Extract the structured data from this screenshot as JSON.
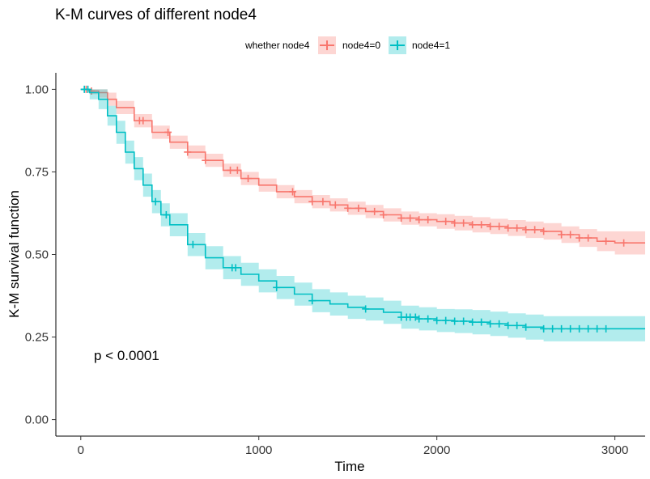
{
  "chart_data": {
    "type": "line",
    "title": "K-M curves of different node4",
    "xlabel": "Time",
    "ylabel": "K-M survival function",
    "xlim": [
      -140,
      3170
    ],
    "ylim": [
      -0.05,
      1.05
    ],
    "xticks": [
      0,
      1000,
      2000,
      3000
    ],
    "yticks": [
      0.0,
      0.25,
      0.5,
      0.75,
      1.0
    ],
    "ytick_labels": [
      "0.00",
      "0.25",
      "0.50",
      "0.75",
      "1.00"
    ],
    "grid": false,
    "legend": {
      "title": "whether node4",
      "placement": "top",
      "entries": [
        "node4=0",
        "node4=1"
      ]
    },
    "annotation": "p < 0.0001",
    "series": [
      {
        "name": "node4=0",
        "color": "#F8766D",
        "band_color": "#F8766D",
        "x": [
          0,
          50,
          100,
          150,
          200,
          300,
          400,
          500,
          600,
          700,
          800,
          900,
          1000,
          1100,
          1200,
          1300,
          1400,
          1500,
          1600,
          1700,
          1800,
          1900,
          2000,
          2100,
          2200,
          2300,
          2400,
          2500,
          2600,
          2700,
          2800,
          2900,
          3000,
          3170
        ],
        "y": [
          1.0,
          0.995,
          0.99,
          0.97,
          0.945,
          0.905,
          0.87,
          0.84,
          0.81,
          0.785,
          0.755,
          0.73,
          0.71,
          0.69,
          0.675,
          0.66,
          0.65,
          0.64,
          0.63,
          0.62,
          0.61,
          0.605,
          0.6,
          0.595,
          0.59,
          0.585,
          0.58,
          0.575,
          0.57,
          0.56,
          0.55,
          0.54,
          0.535,
          0.535
        ],
        "lower": [
          1.0,
          0.985,
          0.975,
          0.95,
          0.925,
          0.885,
          0.85,
          0.82,
          0.79,
          0.765,
          0.735,
          0.71,
          0.69,
          0.67,
          0.655,
          0.64,
          0.63,
          0.62,
          0.61,
          0.6,
          0.59,
          0.585,
          0.578,
          0.573,
          0.567,
          0.562,
          0.556,
          0.55,
          0.545,
          0.535,
          0.523,
          0.51,
          0.5,
          0.5
        ],
        "upper": [
          1.0,
          1.0,
          1.0,
          0.99,
          0.965,
          0.925,
          0.89,
          0.86,
          0.83,
          0.805,
          0.775,
          0.75,
          0.73,
          0.71,
          0.695,
          0.68,
          0.67,
          0.66,
          0.65,
          0.64,
          0.63,
          0.625,
          0.622,
          0.617,
          0.613,
          0.608,
          0.604,
          0.6,
          0.595,
          0.585,
          0.577,
          0.57,
          0.57,
          0.57
        ],
        "censor_x": [
          30,
          60,
          330,
          350,
          490,
          600,
          700,
          840,
          880,
          940,
          1190,
          1300,
          1360,
          1430,
          1500,
          1560,
          1650,
          1700,
          1800,
          1850,
          1900,
          1950,
          2050,
          2100,
          2150,
          2200,
          2250,
          2300,
          2350,
          2400,
          2450,
          2500,
          2550,
          2600,
          2700,
          2750,
          2800,
          2850,
          2950,
          3050
        ]
      },
      {
        "name": "node4=1",
        "color": "#00BFC4",
        "band_color": "#00BFC4",
        "x": [
          0,
          50,
          100,
          150,
          200,
          250,
          300,
          350,
          400,
          450,
          500,
          600,
          700,
          800,
          900,
          1000,
          1100,
          1200,
          1300,
          1400,
          1500,
          1600,
          1700,
          1800,
          1900,
          2000,
          2100,
          2200,
          2300,
          2400,
          2500,
          2600,
          2700,
          2800,
          2900,
          3000,
          3170
        ],
        "y": [
          1.0,
          0.99,
          0.97,
          0.92,
          0.87,
          0.81,
          0.76,
          0.71,
          0.66,
          0.62,
          0.59,
          0.53,
          0.49,
          0.46,
          0.44,
          0.42,
          0.4,
          0.38,
          0.36,
          0.35,
          0.34,
          0.335,
          0.325,
          0.31,
          0.305,
          0.3,
          0.298,
          0.295,
          0.29,
          0.285,
          0.28,
          0.275,
          0.275,
          0.275,
          0.275,
          0.275,
          0.275
        ],
        "lower": [
          1.0,
          0.97,
          0.94,
          0.89,
          0.835,
          0.775,
          0.725,
          0.675,
          0.625,
          0.585,
          0.555,
          0.495,
          0.455,
          0.425,
          0.405,
          0.385,
          0.365,
          0.345,
          0.325,
          0.315,
          0.305,
          0.3,
          0.29,
          0.275,
          0.27,
          0.265,
          0.262,
          0.258,
          0.253,
          0.248,
          0.242,
          0.237,
          0.237,
          0.237,
          0.237,
          0.237,
          0.237
        ],
        "upper": [
          1.0,
          1.0,
          1.0,
          0.95,
          0.905,
          0.845,
          0.795,
          0.745,
          0.695,
          0.655,
          0.625,
          0.565,
          0.525,
          0.495,
          0.475,
          0.455,
          0.435,
          0.415,
          0.395,
          0.385,
          0.375,
          0.37,
          0.36,
          0.345,
          0.34,
          0.335,
          0.334,
          0.332,
          0.327,
          0.322,
          0.318,
          0.313,
          0.313,
          0.313,
          0.313,
          0.313,
          0.313
        ],
        "censor_x": [
          20,
          40,
          420,
          480,
          630,
          850,
          870,
          1100,
          1300,
          1600,
          1800,
          1830,
          1850,
          1880,
          1900,
          1950,
          2000,
          2050,
          2100,
          2150,
          2200,
          2250,
          2300,
          2350,
          2400,
          2450,
          2500,
          2600,
          2650,
          2700,
          2750,
          2800,
          2850,
          2900,
          2950
        ]
      }
    ]
  }
}
